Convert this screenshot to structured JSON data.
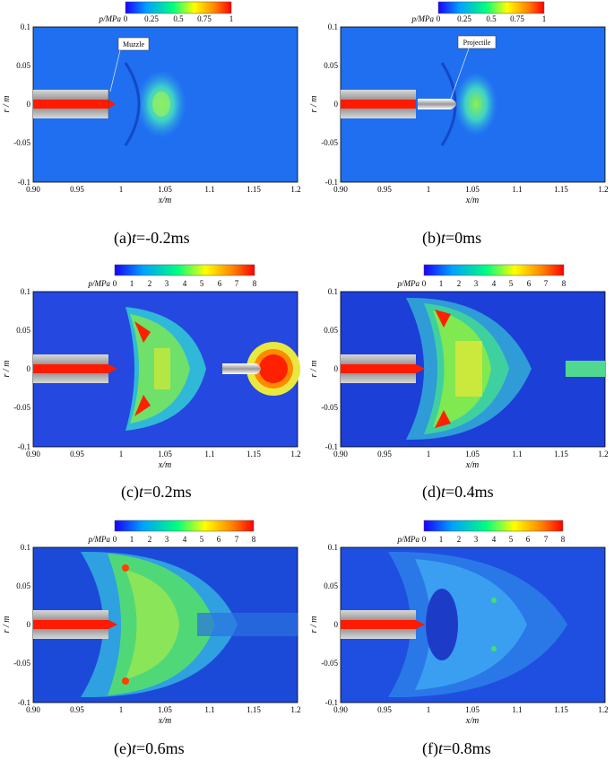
{
  "colorbar_titles": [
    "p/MPa",
    "p/MPa",
    "p/MPa",
    "p/MPa",
    "p/MPa",
    "p/MPa"
  ],
  "panels": [
    {
      "id": "a",
      "prefix": "(a)",
      "tvar": "t",
      "tval": "=-0.2ms",
      "annotation": "Muzzle",
      "cbar_ticks": [
        "0",
        "0.25",
        "0.5",
        "0.75",
        "1"
      ],
      "cbar_max": 1,
      "xticks": [
        "0.90",
        "0.95",
        "1",
        "1.05",
        "1.1",
        "1.15",
        "1.2"
      ],
      "yticks": [
        "0.1",
        "0.05",
        "0",
        "-0.05",
        "-0.1"
      ],
      "xlabel": "x/m",
      "ylabel": "r / m"
    },
    {
      "id": "b",
      "prefix": "(b)",
      "tvar": "t",
      "tval": "=0ms",
      "annotation": "Projectile",
      "cbar_ticks": [
        "0",
        "0.25",
        "0.5",
        "0.75",
        "1"
      ],
      "cbar_max": 1,
      "xticks": [
        "0.90",
        "0.95",
        "1",
        "1.05",
        "1.1",
        "1.15",
        "1.2"
      ],
      "yticks": [
        "0.1",
        "0.05",
        "0",
        "-0.05",
        "-0.1"
      ],
      "xlabel": "x/m",
      "ylabel": "r / m"
    },
    {
      "id": "c",
      "prefix": "(c)",
      "tvar": "t",
      "tval": "=0.2ms",
      "annotation": "",
      "cbar_ticks": [
        "0",
        "1",
        "2",
        "3",
        "4",
        "5",
        "6",
        "7",
        "8"
      ],
      "cbar_max": 8,
      "xticks": [
        "0.90",
        "0.95",
        "1",
        "1.05",
        "1.1",
        "1.15",
        "1.2"
      ],
      "yticks": [
        "0.1",
        "0.05",
        "0",
        "-0.05",
        "-0.1"
      ],
      "xlabel": "x/m",
      "ylabel": "r / m"
    },
    {
      "id": "d",
      "prefix": "(d)",
      "tvar": "t",
      "tval": "=0.4ms",
      "annotation": "",
      "cbar_ticks": [
        "0",
        "1",
        "2",
        "3",
        "4",
        "5",
        "6",
        "7",
        "8"
      ],
      "cbar_max": 8,
      "xticks": [
        "0.90",
        "0.95",
        "1",
        "1.05",
        "1.1",
        "1.15",
        "1.2"
      ],
      "yticks": [
        "0.1",
        "0.05",
        "0",
        "-0.05",
        "-0.1"
      ],
      "xlabel": "x/m",
      "ylabel": "r / m"
    },
    {
      "id": "e",
      "prefix": "(e)",
      "tvar": "t",
      "tval": "=0.6ms",
      "annotation": "",
      "cbar_ticks": [
        "0",
        "1",
        "2",
        "3",
        "4",
        "5",
        "6",
        "7",
        "8"
      ],
      "cbar_max": 8,
      "xticks": [
        "0.90",
        "0.95",
        "1",
        "1.05",
        "1.1",
        "1.15",
        "1.2"
      ],
      "yticks": [
        "0.1",
        "0.05",
        "0",
        "-0.05",
        "-0.1"
      ],
      "xlabel": "x/m",
      "ylabel": "r / m"
    },
    {
      "id": "f",
      "prefix": "(f)",
      "tvar": "t",
      "tval": "=0.8ms",
      "annotation": "",
      "cbar_ticks": [
        "0",
        "1",
        "2",
        "3",
        "4",
        "5",
        "6",
        "7",
        "8"
      ],
      "cbar_max": 8,
      "xticks": [
        "0.90",
        "0.95",
        "1",
        "1.05",
        "1.1",
        "1.15",
        "1.2"
      ],
      "yticks": [
        "0.1",
        "0.05",
        "0",
        "-0.05",
        "-0.1"
      ],
      "xlabel": "x/m",
      "ylabel": "r / m"
    }
  ],
  "colors": {
    "cold": "#1f5fe8",
    "barrel": "#9a9a9a",
    "core": "#ff1a00"
  }
}
